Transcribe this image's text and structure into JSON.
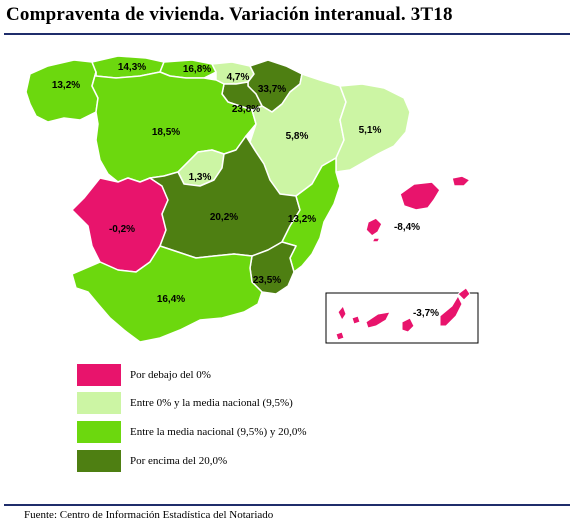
{
  "title": "Compraventa de vivienda. Variación interanual. 3T18",
  "colors": {
    "below_zero": "#e8146c",
    "zero_to_national": "#ccf5a4",
    "national_to_20": "#6cd80e",
    "above_20": "#4e7f12",
    "border": "#ffffff"
  },
  "regions": [
    {
      "name": "Galicia",
      "value": "13,2%",
      "category": "national_to_20"
    },
    {
      "name": "Asturias",
      "value": "14,3%",
      "category": "national_to_20"
    },
    {
      "name": "Cantabria",
      "value": "16,8%",
      "category": "national_to_20"
    },
    {
      "name": "País Vasco",
      "value": "4,7%",
      "category": "zero_to_national"
    },
    {
      "name": "Navarra",
      "value": "33,7%",
      "category": "above_20"
    },
    {
      "name": "La Rioja",
      "value": "23,8%",
      "category": "above_20"
    },
    {
      "name": "Aragón",
      "value": "5,8%",
      "category": "zero_to_national"
    },
    {
      "name": "Cataluña",
      "value": "5,1%",
      "category": "zero_to_national"
    },
    {
      "name": "Castilla y León",
      "value": "18,5%",
      "category": "national_to_20"
    },
    {
      "name": "Madrid",
      "value": "1,3%",
      "category": "zero_to_national"
    },
    {
      "name": "Extremadura",
      "value": "-0,2%",
      "category": "below_zero"
    },
    {
      "name": "Castilla-La Mancha",
      "value": "20,2%",
      "category": "above_20"
    },
    {
      "name": "Comunidad Valenciana",
      "value": "13,2%",
      "category": "national_to_20"
    },
    {
      "name": "Islas Baleares",
      "value": "-8,4%",
      "category": "below_zero"
    },
    {
      "name": "Región de Murcia",
      "value": "23,5%",
      "category": "above_20"
    },
    {
      "name": "Andalucía",
      "value": "16,4%",
      "category": "national_to_20"
    },
    {
      "name": "Canarias",
      "value": "-3,7%",
      "category": "below_zero"
    }
  ],
  "legend": [
    {
      "label": "Por debajo del 0%",
      "category": "below_zero"
    },
    {
      "label": "Entre 0% y la media nacional (9,5%)",
      "category": "zero_to_national"
    },
    {
      "label": "Entre la media nacional (9,5%) y 20,0%",
      "category": "national_to_20"
    },
    {
      "label": "Por encima del 20,0%",
      "category": "above_20"
    }
  ],
  "source": "Fuente: Centro de Información Estadística del Notariado"
}
